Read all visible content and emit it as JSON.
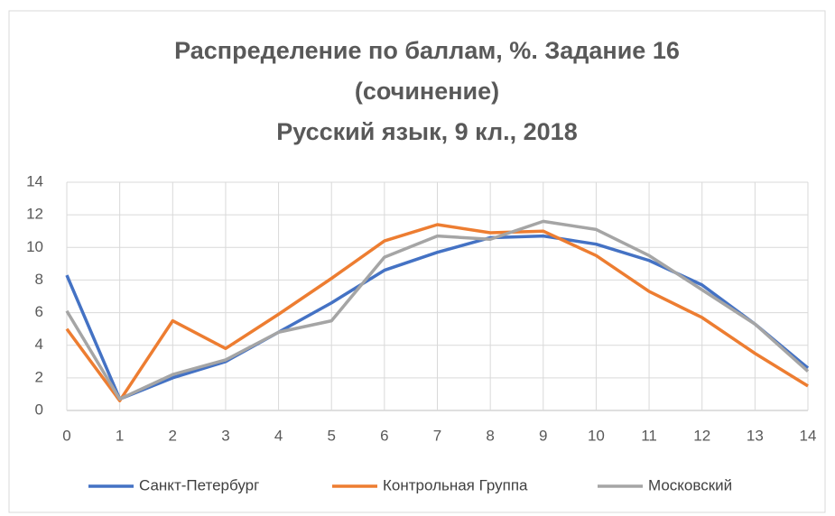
{
  "chart_data": {
    "type": "line",
    "title": [
      "Распределение по баллам, %. Задание 16",
      "(сочинение)",
      "Русский язык, 9 кл., 2018"
    ],
    "x": [
      0,
      1,
      2,
      3,
      4,
      5,
      6,
      7,
      8,
      9,
      10,
      11,
      12,
      13,
      14
    ],
    "xlim": [
      0,
      14
    ],
    "xticks": [
      0,
      1,
      2,
      3,
      4,
      5,
      6,
      7,
      8,
      9,
      10,
      11,
      12,
      13,
      14
    ],
    "ylim": [
      0,
      14
    ],
    "yticks": [
      0,
      2,
      4,
      6,
      8,
      10,
      12,
      14
    ],
    "grid": true,
    "legend": "bottom",
    "series": [
      {
        "name": "Санкт-Петербург",
        "color": "#4472c4",
        "values": [
          8.3,
          0.7,
          2.0,
          3.0,
          4.8,
          6.6,
          8.6,
          9.7,
          10.6,
          10.7,
          10.2,
          9.2,
          7.7,
          5.3,
          2.6
        ]
      },
      {
        "name": "Контрольная Группа",
        "color": "#ed7d31",
        "values": [
          5.0,
          0.6,
          5.5,
          3.8,
          5.9,
          8.1,
          10.4,
          11.4,
          10.9,
          11.0,
          9.5,
          7.3,
          5.7,
          3.5,
          1.5
        ]
      },
      {
        "name": "Московский",
        "color": "#a5a5a5",
        "values": [
          6.1,
          0.7,
          2.2,
          3.1,
          4.8,
          5.5,
          9.4,
          10.7,
          10.5,
          11.6,
          11.1,
          9.5,
          7.4,
          5.3,
          2.4
        ]
      }
    ]
  }
}
